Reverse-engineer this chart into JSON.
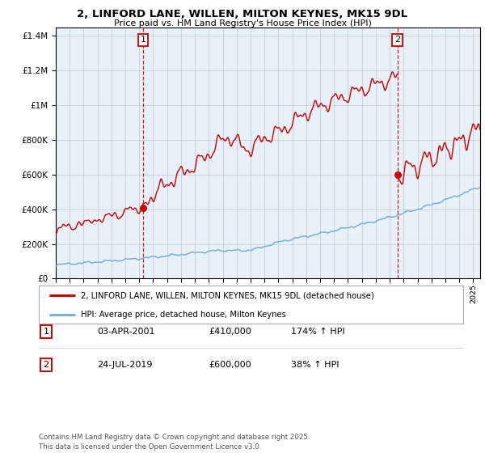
{
  "title_line1": "2, LINFORD LANE, WILLEN, MILTON KEYNES, MK15 9DL",
  "title_line2": "Price paid vs. HM Land Registry's House Price Index (HPI)",
  "legend_line1": "2, LINFORD LANE, WILLEN, MILTON KEYNES, MK15 9DL (detached house)",
  "legend_line2": "HPI: Average price, detached house, Milton Keynes",
  "annotation1_date": "03-APR-2001",
  "annotation1_price": "£410,000",
  "annotation1_hpi": "174% ↑ HPI",
  "annotation2_date": "24-JUL-2019",
  "annotation2_price": "£600,000",
  "annotation2_hpi": "38% ↑ HPI",
  "footer": "Contains HM Land Registry data © Crown copyright and database right 2025.\nThis data is licensed under the Open Government Licence v3.0.",
  "property_color": "#cc0000",
  "hpi_color": "#7ab0d4",
  "plot_bg_color": "#e8f0f8",
  "ylim": [
    0,
    1450000
  ],
  "sale1_year": 2001.27,
  "sale1_price": 410000,
  "sale2_year": 2019.56,
  "sale2_price": 600000,
  "vline_color": "#cc0000",
  "grid_color": "#c0c8d8"
}
